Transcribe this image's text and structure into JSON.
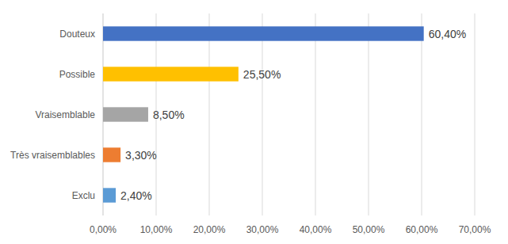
{
  "chart_data": {
    "type": "bar",
    "orientation": "horizontal",
    "categories": [
      "Douteux",
      "Possible",
      "Vraisemblable",
      "Très vraisemblables",
      "Exclu"
    ],
    "values": [
      60.4,
      25.5,
      8.5,
      3.3,
      2.4
    ],
    "value_labels": [
      "60,40%",
      "25,50%",
      "8,50%",
      "3,30%",
      "2,40%"
    ],
    "colors": [
      "#4472c4",
      "#ffc000",
      "#a5a5a5",
      "#ed7d31",
      "#5b9bd5"
    ],
    "xlim": [
      0,
      70
    ],
    "xticks": [
      {
        "value": 0,
        "label": "0,00%"
      },
      {
        "value": 10,
        "label": "10,00%"
      },
      {
        "value": 20,
        "label": "20,00%"
      },
      {
        "value": 30,
        "label": "30,00%"
      },
      {
        "value": 40,
        "label": "40,00%"
      },
      {
        "value": 50,
        "label": "50,00%"
      },
      {
        "value": 60,
        "label": "60,00%"
      },
      {
        "value": 70,
        "label": "70,00%"
      }
    ],
    "grid": true,
    "data_labels": true
  }
}
